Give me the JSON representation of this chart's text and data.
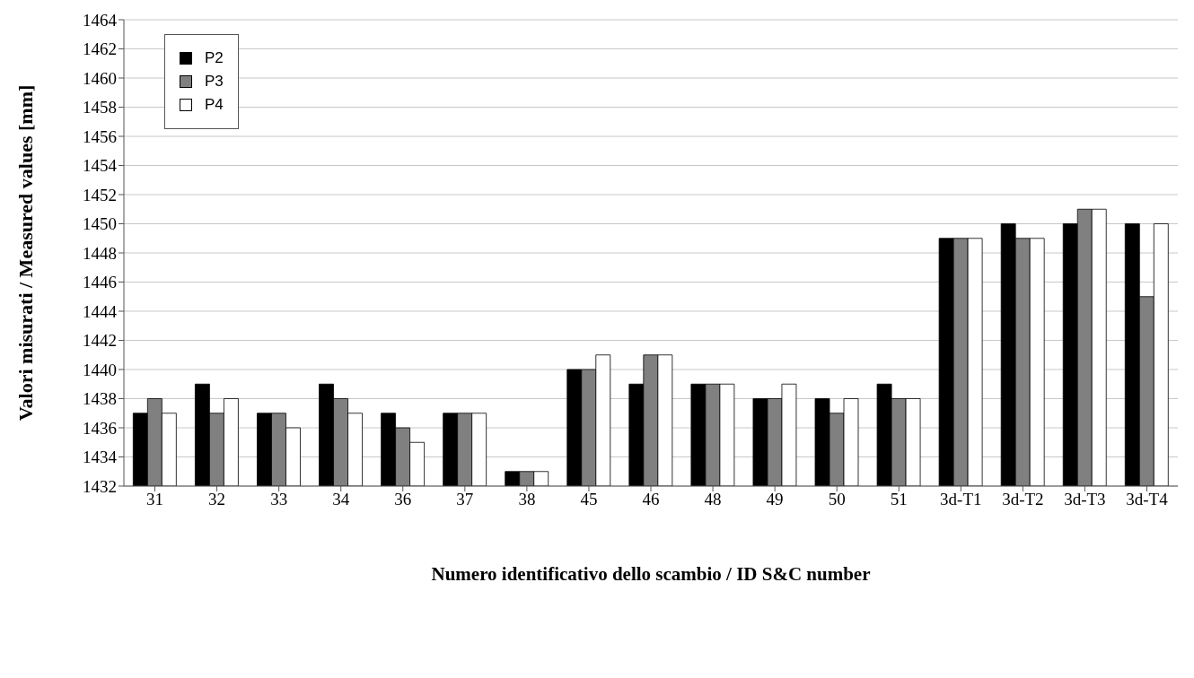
{
  "chart_data": {
    "type": "bar",
    "xlabel": "Numero identificativo dello scambio / ID S&C number",
    "ylabel": "Valori misurati / Measured values [mm]",
    "categories": [
      "31",
      "32",
      "33",
      "34",
      "36",
      "37",
      "38",
      "45",
      "46",
      "48",
      "49",
      "50",
      "51",
      "3d-T1",
      "3d-T2",
      "3d-T3",
      "3d-T4"
    ],
    "series": [
      {
        "name": "P2",
        "color": "#000000",
        "values": [
          1437,
          1439,
          1437,
          1439,
          1437,
          1437,
          1433,
          1440,
          1439,
          1439,
          1438,
          1438,
          1439,
          1449,
          1450,
          1450,
          1450
        ]
      },
      {
        "name": "P3",
        "color": "#808080",
        "values": [
          1438,
          1437,
          1437,
          1438,
          1436,
          1437,
          1433,
          1440,
          1441,
          1439,
          1438,
          1437,
          1438,
          1449,
          1449,
          1451,
          1445
        ]
      },
      {
        "name": "P4",
        "color": "#ffffff",
        "values": [
          1437,
          1438,
          1436,
          1437,
          1435,
          1437,
          1433,
          1441,
          1441,
          1439,
          1439,
          1438,
          1438,
          1449,
          1449,
          1451,
          1450
        ]
      }
    ],
    "ylim": [
      1432,
      1464
    ],
    "yticks": [
      1432,
      1434,
      1436,
      1438,
      1440,
      1442,
      1444,
      1446,
      1448,
      1450,
      1452,
      1454,
      1456,
      1458,
      1460,
      1462,
      1464
    ],
    "grid": "y",
    "legend": "top left"
  }
}
